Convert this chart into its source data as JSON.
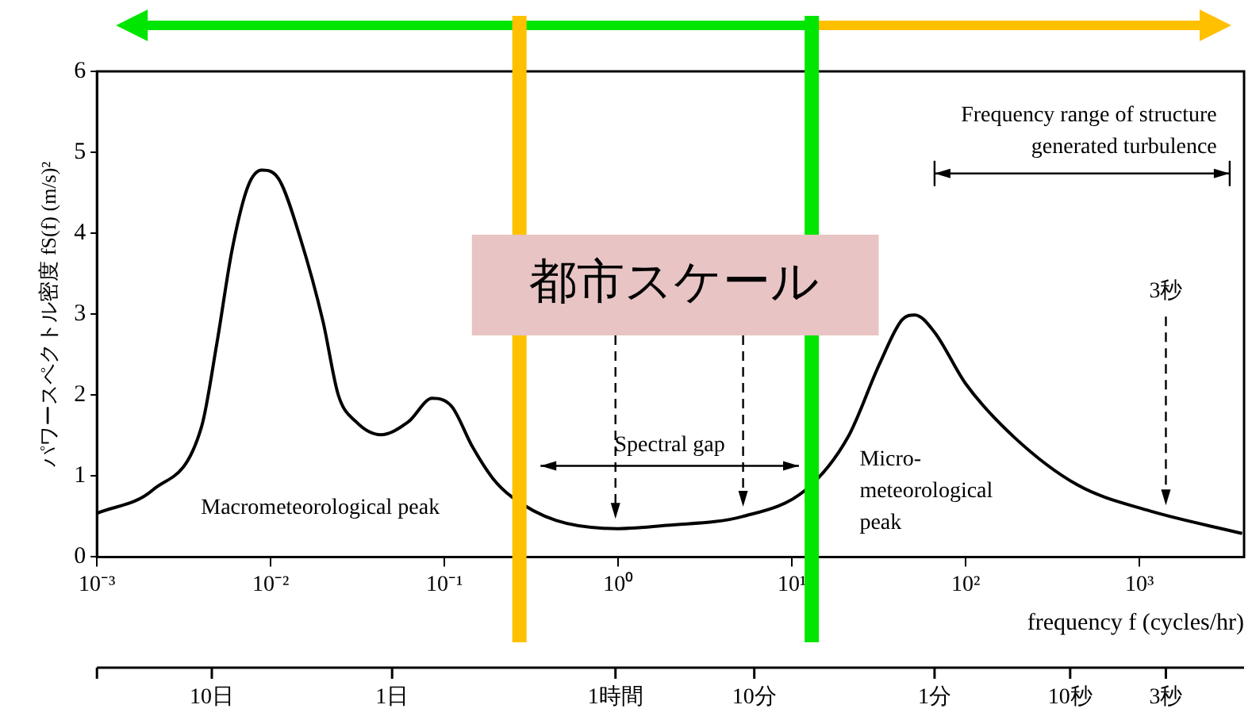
{
  "chart_data": {
    "type": "line",
    "xlabel": "frequency f (cycles/hr)",
    "ylabel": "パワースペクトル密度 fS(f) (m/s)²",
    "x": [
      0.001,
      0.0021,
      0.004,
      0.0049,
      0.006,
      0.0074,
      0.0089,
      0.0112,
      0.0148,
      0.02,
      0.0245,
      0.031,
      0.043,
      0.062,
      0.085,
      0.11,
      0.145,
      0.19,
      0.245,
      0.44,
      1,
      1.9,
      5.2,
      12,
      21,
      32,
      43,
      51,
      66,
      100,
      190,
      440,
      1100,
      3900
    ],
    "series": [
      {
        "color": "#000000",
        "values": [
          0.54,
          0.83,
          1.61,
          2.64,
          3.8,
          4.58,
          4.78,
          4.66,
          3.94,
          2.91,
          2.0,
          1.67,
          1.51,
          1.67,
          1.96,
          1.86,
          1.36,
          0.97,
          0.74,
          0.45,
          0.35,
          0.39,
          0.5,
          0.83,
          1.48,
          2.39,
          2.93,
          2.99,
          2.78,
          2.14,
          1.48,
          0.89,
          0.58,
          0.29
        ]
      }
    ],
    "log": "x",
    "xlim": [
      0.001,
      4000
    ],
    "xticks": [
      {
        "value": 0.001,
        "label": "10⁻³"
      },
      {
        "value": 0.01,
        "label": "10⁻²"
      },
      {
        "value": 0.1,
        "label": "10⁻¹"
      },
      {
        "value": 1,
        "label": "10⁰"
      },
      {
        "value": 10,
        "label": "10¹"
      },
      {
        "value": 100,
        "label": "10²"
      },
      {
        "value": 1000,
        "label": "10³"
      }
    ],
    "ylim": [
      0,
      6
    ],
    "yticks": [
      0,
      1,
      2,
      3,
      4,
      5,
      6
    ],
    "ref_lines": [
      {
        "axis": "x",
        "value": 0.27,
        "color": "#ffc000"
      },
      {
        "axis": "x",
        "value": 13,
        "color": "#00e600"
      }
    ],
    "annotations": [
      "Macrometeorological peak",
      "Micro-\nmeteorological\npeak",
      "3秒",
      "都市スケール",
      "Spectral gap",
      "Frequency range of structure\ngenerated turbulence",
      "10日",
      "1日",
      "1時間",
      "10分",
      "1分",
      "10秒",
      "3秒"
    ]
  }
}
